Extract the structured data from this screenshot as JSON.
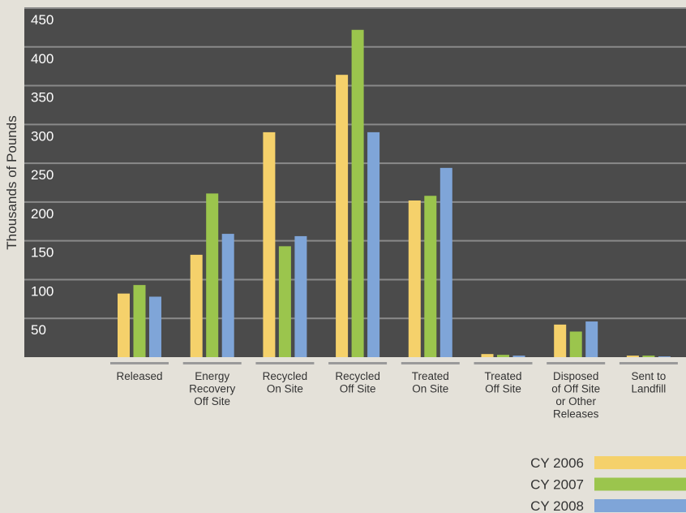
{
  "chart_data": {
    "type": "bar",
    "y_label": "Thousands of Pounds",
    "categories": [
      [
        "Released"
      ],
      [
        "Energy",
        "Recovery",
        "Off Site"
      ],
      [
        "Recycled",
        "On Site"
      ],
      [
        "Recycled",
        "Off Site"
      ],
      [
        "Treated",
        "On Site"
      ],
      [
        "Treated",
        "Off Site"
      ],
      [
        "Disposed",
        "of Off Site",
        "or Other",
        "Releases"
      ],
      [
        "Sent to",
        "Landfill"
      ]
    ],
    "series": [
      {
        "name": "CY 2006",
        "color": "#f5d16b",
        "values": [
          82,
          132,
          290,
          364,
          202,
          4,
          42,
          2
        ]
      },
      {
        "name": "CY 2007",
        "color": "#9bc54d",
        "values": [
          93,
          211,
          143,
          422,
          208,
          3,
          33,
          2
        ]
      },
      {
        "name": "CY 2008",
        "color": "#7fa5d8",
        "values": [
          78,
          159,
          156,
          290,
          244,
          2,
          46,
          1
        ]
      }
    ],
    "ylim": [
      0,
      450
    ],
    "yticks": [
      50,
      100,
      150,
      200,
      250,
      300,
      350,
      400,
      450
    ],
    "grid": true
  }
}
